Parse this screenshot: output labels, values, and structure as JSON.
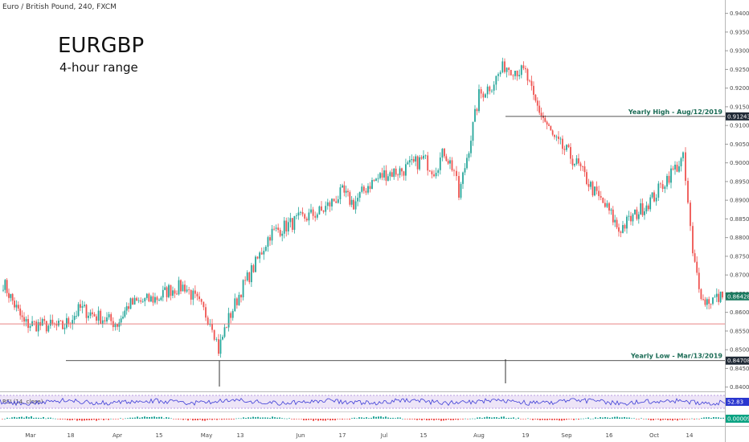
{
  "header": {
    "instrument": "Euro / British Pound, 240, FXCM",
    "symbol": "EURGBP",
    "subtitle": "4-hour range"
  },
  "colors": {
    "up": "#26a69a",
    "down": "#ef5350",
    "support": "#e57373",
    "rsi": "#3c3cd6",
    "rsi_band": "#ede4f7",
    "tag_dark": "#202a36",
    "tag_green": "#1b7a60",
    "tag_blue": "#2a36cf",
    "tag_teal": "#0aa383"
  },
  "annotations": {
    "high_label": "Yearly High - Aug/12/2019",
    "low_label": "Yearly Low - Mar/13/2019",
    "high_value": "0.91243",
    "low_value": "0.84708",
    "current_value": "0.86428",
    "rsi_value": "52.83",
    "macd_value": "0.00009",
    "rsi_label": "RSI (14, close)"
  },
  "chart_data": {
    "type": "candlestick",
    "title": "EURGBP",
    "subtitle": "4-hour range",
    "ylim": [
      0.8395,
      0.9425
    ],
    "y_ticks": [
      "0.94000",
      "0.93500",
      "0.93000",
      "0.92500",
      "0.92000",
      "0.91500",
      "0.91000",
      "0.90500",
      "0.90000",
      "0.89500",
      "0.89000",
      "0.88500",
      "0.88000",
      "0.87500",
      "0.87000",
      "0.86500",
      "0.86000",
      "0.85500",
      "0.85000",
      "0.84500",
      "0.84000"
    ],
    "x_ticks": [
      "Mar",
      "18",
      "Apr",
      "15",
      "May",
      "13",
      "Jun",
      "17",
      "Jul",
      "15",
      "Aug",
      "19",
      "Sep",
      "16",
      "Oct",
      "14"
    ],
    "path": [
      [
        "Mar",
        0.868
      ],
      [
        "Mar",
        0.862
      ],
      [
        "Mar",
        0.857
      ],
      [
        "18",
        0.856
      ],
      [
        "18",
        0.861
      ],
      [
        "18",
        0.859
      ],
      [
        "Apr",
        0.857
      ],
      [
        "Apr",
        0.862
      ],
      [
        "15",
        0.864
      ],
      [
        "15",
        0.866
      ],
      [
        "15",
        0.867
      ],
      [
        "May",
        0.862
      ],
      [
        "May",
        0.857
      ],
      [
        "May",
        0.85
      ],
      [
        "13",
        0.857
      ],
      [
        "13",
        0.866
      ],
      [
        "13",
        0.873
      ],
      [
        "13",
        0.881
      ],
      [
        "Jun",
        0.885
      ],
      [
        "Jun",
        0.887
      ],
      [
        "17",
        0.892
      ],
      [
        "17",
        0.889
      ],
      [
        "17",
        0.894
      ],
      [
        "Jul",
        0.897
      ],
      [
        "Jul",
        0.898
      ],
      [
        "15",
        0.901
      ],
      [
        "15",
        0.898
      ],
      [
        "15",
        0.903
      ],
      [
        "15",
        0.9
      ],
      [
        "15",
        0.898
      ],
      [
        "15",
        0.891
      ],
      [
        "Aug",
        0.907
      ],
      [
        "Aug",
        0.918
      ],
      [
        "Aug",
        0.921
      ],
      [
        "Aug",
        0.926
      ],
      [
        "19",
        0.924
      ],
      [
        "19",
        0.917
      ],
      [
        "19",
        0.912
      ],
      [
        "19",
        0.906
      ],
      [
        "Sep",
        0.903
      ],
      [
        "Sep",
        0.899
      ],
      [
        "Sep",
        0.892
      ],
      [
        "16",
        0.887
      ],
      [
        "16",
        0.882
      ],
      [
        "16",
        0.886
      ],
      [
        "Oct",
        0.891
      ],
      [
        "Oct",
        0.896
      ],
      [
        "Oct",
        0.901
      ],
      [
        "Oct",
        0.889
      ],
      [
        "14",
        0.875
      ],
      [
        "14",
        0.863
      ],
      [
        "14",
        0.864
      ]
    ],
    "high": 0.91243,
    "low": 0.84708,
    "support": 0.8569,
    "last": 0.86428,
    "rsi_last": 52.83,
    "macd_last": 9e-05,
    "grid": false
  }
}
